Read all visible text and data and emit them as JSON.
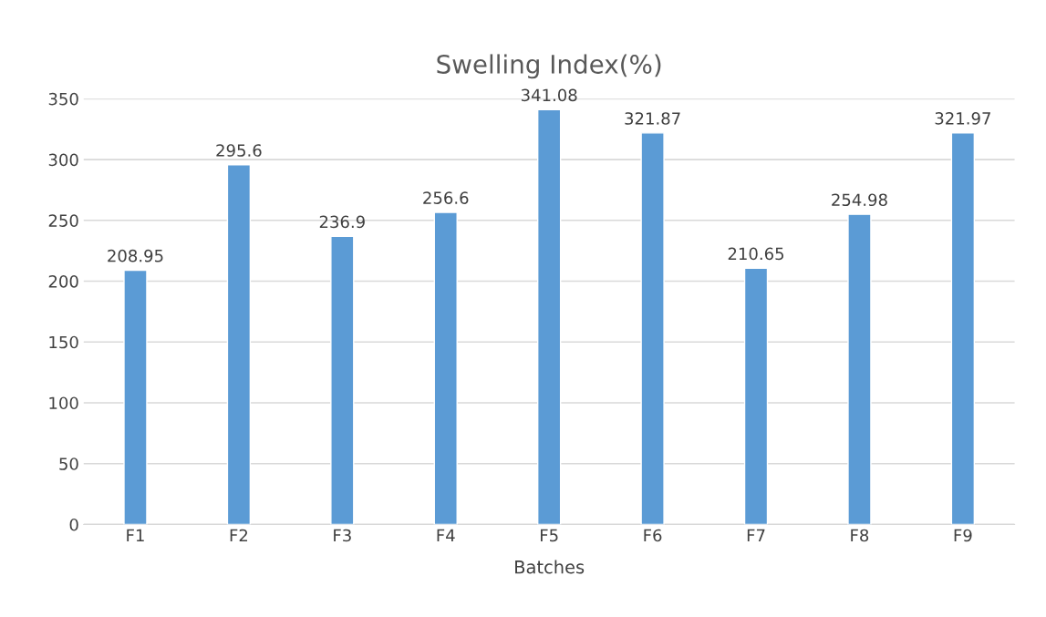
{
  "chart_data": {
    "type": "bar",
    "title": "Swelling Index(%)",
    "xlabel": "Batches",
    "categories": [
      "F1",
      "F2",
      "F3",
      "F4",
      "F5",
      "F6",
      "F7",
      "F8",
      "F9"
    ],
    "values": [
      208.95,
      295.6,
      236.9,
      256.6,
      341.08,
      321.87,
      210.65,
      254.98,
      321.97
    ],
    "color": "#5b9bd5",
    "ylim": [
      0,
      350
    ],
    "yticks": [
      0,
      50,
      100,
      150,
      200,
      250,
      300,
      350
    ],
    "grid": "y",
    "data_labels": true
  }
}
